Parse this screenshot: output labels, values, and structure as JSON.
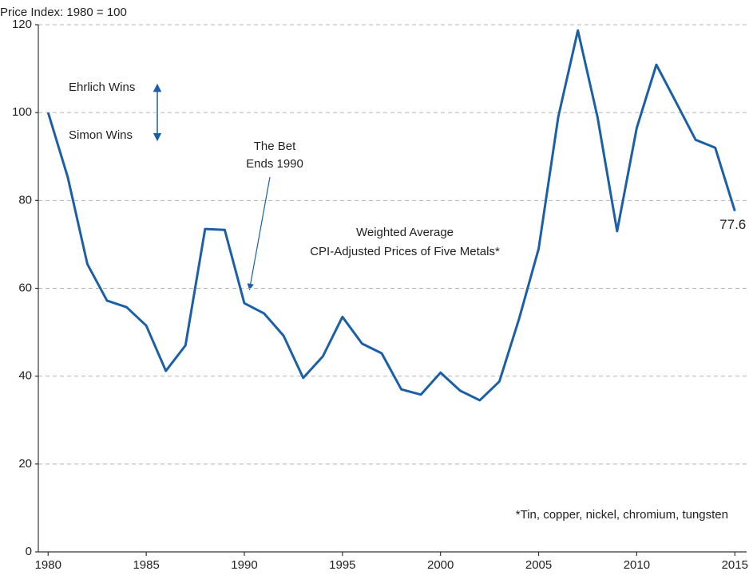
{
  "chart_data": {
    "type": "line",
    "y_axis_label": "Price Index: 1980 = 100",
    "x": [
      1980,
      1981,
      1982,
      1983,
      1984,
      1985,
      1986,
      1987,
      1988,
      1989,
      1990,
      1991,
      1992,
      1993,
      1994,
      1995,
      1996,
      1997,
      1998,
      1999,
      2000,
      2001,
      2002,
      2003,
      2004,
      2005,
      2006,
      2007,
      2008,
      2009,
      2010,
      2011,
      2012,
      2013,
      2014,
      2015
    ],
    "series": [
      {
        "color": "#1b5fa8",
        "values": [
          100,
          85.3,
          65.5,
          57.2,
          55.7,
          51.5,
          41.2,
          47,
          73.5,
          73.3,
          56.6,
          54.3,
          49.2,
          39.6,
          44.5,
          53.5,
          47.4,
          45.2,
          37,
          35.8,
          40.8,
          36.7,
          34.5,
          38.8,
          53,
          69,
          99,
          118.7,
          99,
          73,
          96.5,
          110.9,
          102.4,
          93.8,
          92,
          77.6
        ]
      }
    ],
    "xlim": [
      1979.5,
      2015.6
    ],
    "xticks": [
      1980,
      1985,
      1990,
      1995,
      2000,
      2005,
      2010,
      2015
    ],
    "ylim": [
      0,
      120
    ],
    "yticks": [
      0,
      20,
      40,
      60,
      80,
      100,
      120
    ],
    "grid": true,
    "annotations": {
      "ehrlich": "Ehrlich Wins",
      "simon": "Simon Wins",
      "bet": [
        "The Bet",
        "Ends 1990"
      ],
      "series_label": [
        "Weighted Average",
        "CPI-Adjusted Prices of Five Metals*"
      ],
      "footnote": "*Tin, copper, nickel, chromium, tungsten"
    }
  }
}
